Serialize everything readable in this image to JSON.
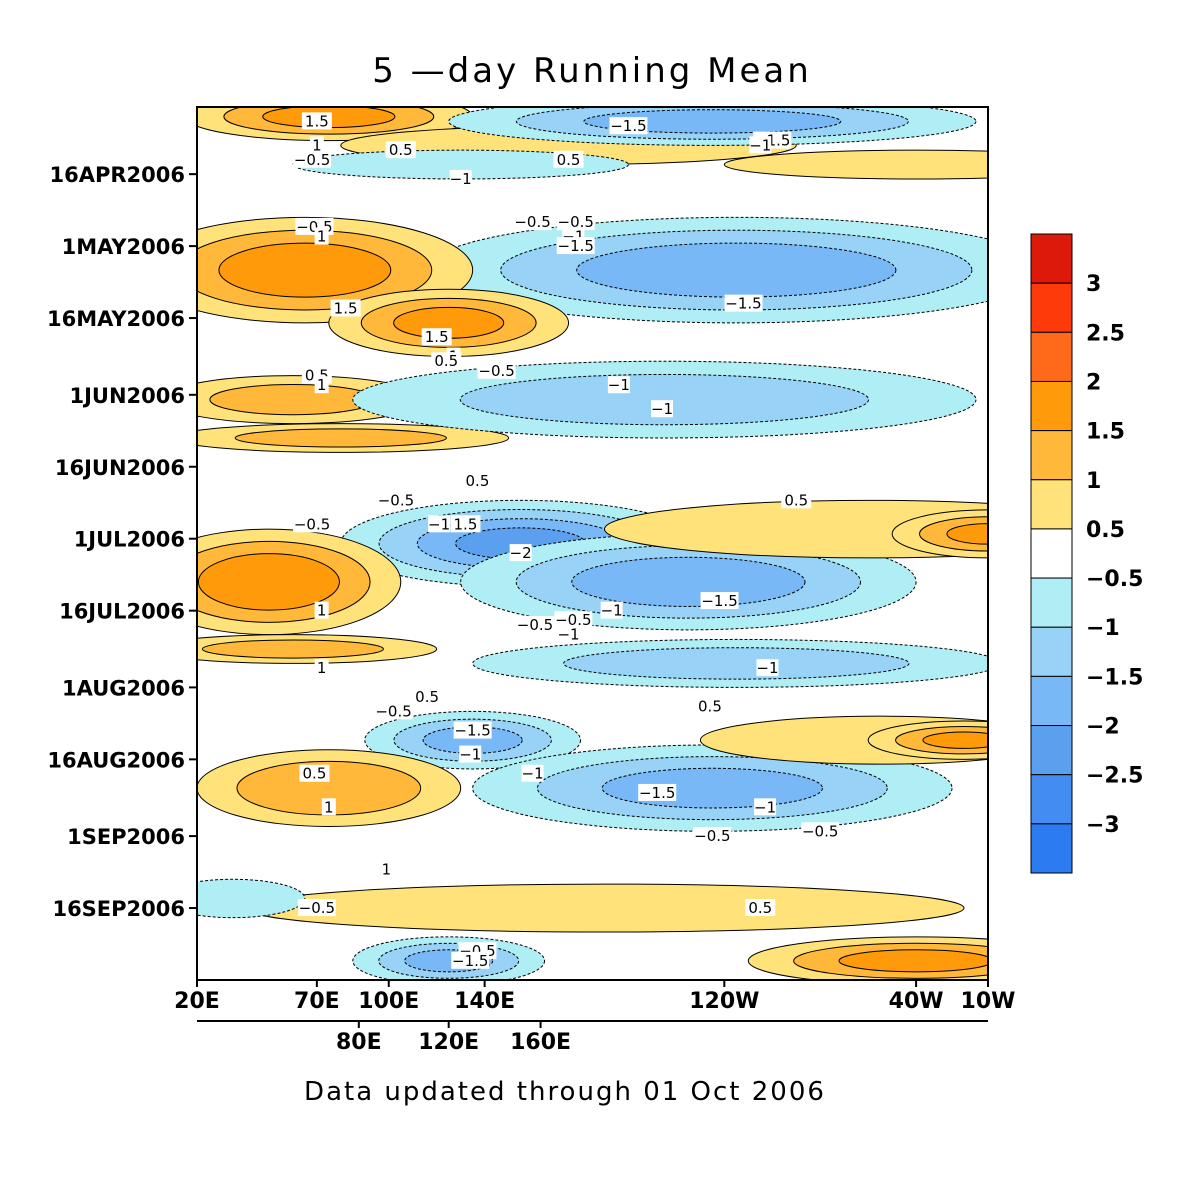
{
  "chart_data": {
    "type": "heatmap",
    "title": "5 —day Running Mean",
    "footer": "Data updated through 01 Oct 2006",
    "x_axis_top_ticks": [
      {
        "label": "20E",
        "lon": 20
      },
      {
        "label": "70E",
        "lon": 70
      },
      {
        "label": "100E",
        "lon": 100
      },
      {
        "label": "140E",
        "lon": 140
      },
      {
        "label": "120W",
        "lon": 240
      },
      {
        "label": "40W",
        "lon": 320
      },
      {
        "label": "10W",
        "lon": 350
      }
    ],
    "x_axis_bottom_ticks": [
      {
        "label": "80E",
        "lon": 80
      },
      {
        "label": "120E",
        "lon": 120
      },
      {
        "label": "160E",
        "lon": 160
      }
    ],
    "x_range": [
      20,
      350
    ],
    "y_range_days_after_apr1": [
      1,
      183
    ],
    "y_ticks": [
      {
        "label": "16APR2006",
        "day": 15
      },
      {
        "label": "1MAY2006",
        "day": 30
      },
      {
        "label": "16MAY2006",
        "day": 45
      },
      {
        "label": "1JUN2006",
        "day": 61
      },
      {
        "label": "16JUN2006",
        "day": 76
      },
      {
        "label": "1JUL2006",
        "day": 91
      },
      {
        "label": "16JUL2006",
        "day": 106
      },
      {
        "label": "1AUG2006",
        "day": 122
      },
      {
        "label": "16AUG2006",
        "day": 137
      },
      {
        "label": "1SEP2006",
        "day": 153
      },
      {
        "label": "16SEP2006",
        "day": 168
      }
    ],
    "colorbar": {
      "labels": [
        "3",
        "2.5",
        "2",
        "1.5",
        "1",
        "0.5",
        "−0.5",
        "−1",
        "−1.5",
        "−2",
        "−2.5",
        "−3"
      ],
      "colors": [
        "#dd1a0a",
        "#ff3a0a",
        "#ff6a1a",
        "#ff9a0a",
        "#ffb83a",
        "#ffe27a",
        "#ffffff",
        "#b0eef6",
        "#98d2f6",
        "#78b8f6",
        "#5aa0ee",
        "#428cf2",
        "#2a7cf0"
      ]
    },
    "blobs": [
      {
        "lon": 75,
        "day": 3,
        "rx": 60,
        "ry": 5,
        "v": 1.6
      },
      {
        "lon": 175,
        "day": 9,
        "rx": 95,
        "ry": 4,
        "v": 0.8
      },
      {
        "lon": 235,
        "day": 4,
        "rx": 110,
        "ry": 5,
        "v": -1.7
      },
      {
        "lon": 130,
        "day": 13,
        "rx": 70,
        "ry": 3,
        "v": -0.9
      },
      {
        "lon": 320,
        "day": 13,
        "rx": 80,
        "ry": 3,
        "v": 0.6
      },
      {
        "lon": 245,
        "day": 35,
        "rx": 130,
        "ry": 11,
        "v": -1.8
      },
      {
        "lon": 65,
        "day": 35,
        "rx": 70,
        "ry": 11,
        "v": 1.8
      },
      {
        "lon": 125,
        "day": 46,
        "rx": 50,
        "ry": 7,
        "v": 1.6
      },
      {
        "lon": 60,
        "day": 62,
        "rx": 55,
        "ry": 5,
        "v": 1.1
      },
      {
        "lon": 80,
        "day": 70,
        "rx": 70,
        "ry": 3,
        "v": 1.1
      },
      {
        "lon": 215,
        "day": 62,
        "rx": 130,
        "ry": 8,
        "v": -1.2
      },
      {
        "lon": 155,
        "day": 92,
        "rx": 75,
        "ry": 9,
        "v": -2.1
      },
      {
        "lon": 225,
        "day": 100,
        "rx": 95,
        "ry": 10,
        "v": -1.8
      },
      {
        "lon": 50,
        "day": 100,
        "rx": 55,
        "ry": 11,
        "v": 1.9
      },
      {
        "lon": 300,
        "day": 89,
        "rx": 110,
        "ry": 6,
        "v": 0.9
      },
      {
        "lon": 350,
        "day": 90,
        "rx": 40,
        "ry": 5,
        "v": 1.5
      },
      {
        "lon": 245,
        "day": 117,
        "rx": 110,
        "ry": 5,
        "v": -1.2
      },
      {
        "lon": 60,
        "day": 114,
        "rx": 60,
        "ry": 3,
        "v": 1.1
      },
      {
        "lon": 135,
        "day": 133,
        "rx": 45,
        "ry": 6,
        "v": -1.6
      },
      {
        "lon": 235,
        "day": 143,
        "rx": 100,
        "ry": 9,
        "v": -1.6
      },
      {
        "lon": 75,
        "day": 143,
        "rx": 55,
        "ry": 8,
        "v": 1.4
      },
      {
        "lon": 305,
        "day": 133,
        "rx": 75,
        "ry": 5,
        "v": 0.9
      },
      {
        "lon": 340,
        "day": 133,
        "rx": 40,
        "ry": 4,
        "v": 1.5
      },
      {
        "lon": 190,
        "day": 168,
        "rx": 150,
        "ry": 5,
        "v": 0.7
      },
      {
        "lon": 125,
        "day": 179,
        "rx": 40,
        "ry": 5,
        "v": -1.6
      },
      {
        "lon": 320,
        "day": 179,
        "rx": 70,
        "ry": 5,
        "v": 1.6
      },
      {
        "lon": 35,
        "day": 166,
        "rx": 30,
        "ry": 4,
        "v": -0.8
      }
    ],
    "contour_labels": [
      {
        "text": "1.5",
        "lon": 70,
        "day": 4
      },
      {
        "text": "1",
        "lon": 70,
        "day": 9
      },
      {
        "text": "0.5",
        "lon": 105,
        "day": 10
      },
      {
        "text": "−0.5",
        "lon": 68,
        "day": 12
      },
      {
        "text": "−1.5",
        "lon": 200,
        "day": 5
      },
      {
        "text": "−1.5",
        "lon": 260,
        "day": 8
      },
      {
        "text": "−1",
        "lon": 255,
        "day": 9
      },
      {
        "text": "0.5",
        "lon": 175,
        "day": 12
      },
      {
        "text": "−1",
        "lon": 130,
        "day": 16
      },
      {
        "text": "−0.5",
        "lon": 160,
        "day": 25
      },
      {
        "text": "−0.5",
        "lon": 178,
        "day": 25
      },
      {
        "text": "−0.5",
        "lon": 69,
        "day": 26
      },
      {
        "text": "1",
        "lon": 72,
        "day": 28
      },
      {
        "text": "−1",
        "lon": 177,
        "day": 28
      },
      {
        "text": "−1.5",
        "lon": 178,
        "day": 30
      },
      {
        "text": "−1.5",
        "lon": 248,
        "day": 42
      },
      {
        "text": "1.5",
        "lon": 82,
        "day": 43
      },
      {
        "text": "1.5",
        "lon": 120,
        "day": 49
      },
      {
        "text": "1",
        "lon": 127,
        "day": 53
      },
      {
        "text": "0.5",
        "lon": 124,
        "day": 54
      },
      {
        "text": "−0.5",
        "lon": 145,
        "day": 56
      },
      {
        "text": "0.5",
        "lon": 70,
        "day": 57
      },
      {
        "text": "1",
        "lon": 72,
        "day": 59
      },
      {
        "text": "−1",
        "lon": 196,
        "day": 59
      },
      {
        "text": "−1",
        "lon": 214,
        "day": 64
      },
      {
        "text": "0.5",
        "lon": 137,
        "day": 79
      },
      {
        "text": "0.5",
        "lon": 270,
        "day": 83
      },
      {
        "text": "−0.5",
        "lon": 103,
        "day": 83
      },
      {
        "text": "−1",
        "lon": 121,
        "day": 88
      },
      {
        "text": "1.5",
        "lon": 132,
        "day": 88
      },
      {
        "text": "−0.5",
        "lon": 68,
        "day": 88
      },
      {
        "text": "−2",
        "lon": 155,
        "day": 94
      },
      {
        "text": "−1.5",
        "lon": 238,
        "day": 104
      },
      {
        "text": "1",
        "lon": 72,
        "day": 106
      },
      {
        "text": "−1",
        "lon": 193,
        "day": 106
      },
      {
        "text": "−0.5",
        "lon": 161,
        "day": 109
      },
      {
        "text": "−0.5",
        "lon": 177,
        "day": 108
      },
      {
        "text": "−1",
        "lon": 175,
        "day": 111
      },
      {
        "text": "1",
        "lon": 72,
        "day": 118
      },
      {
        "text": "−1",
        "lon": 258,
        "day": 118
      },
      {
        "text": "0.5",
        "lon": 116,
        "day": 124
      },
      {
        "text": "−0.5",
        "lon": 102,
        "day": 127
      },
      {
        "text": "0.5",
        "lon": 234,
        "day": 126
      },
      {
        "text": "−1.5",
        "lon": 135,
        "day": 131
      },
      {
        "text": "−1",
        "lon": 134,
        "day": 136
      },
      {
        "text": "0.5",
        "lon": 69,
        "day": 140
      },
      {
        "text": "−1",
        "lon": 160,
        "day": 140
      },
      {
        "text": "−1.5",
        "lon": 212,
        "day": 144
      },
      {
        "text": "1",
        "lon": 75,
        "day": 147
      },
      {
        "text": "−1",
        "lon": 257,
        "day": 147
      },
      {
        "text": "−0.5",
        "lon": 280,
        "day": 152
      },
      {
        "text": "−0.5",
        "lon": 235,
        "day": 153
      },
      {
        "text": "1",
        "lon": 99,
        "day": 160
      },
      {
        "text": "−0.5",
        "lon": 70,
        "day": 168
      },
      {
        "text": "0.5",
        "lon": 255,
        "day": 168
      },
      {
        "text": "−0.5",
        "lon": 137,
        "day": 177
      },
      {
        "text": "−1.5",
        "lon": 134,
        "day": 179
      }
    ]
  }
}
